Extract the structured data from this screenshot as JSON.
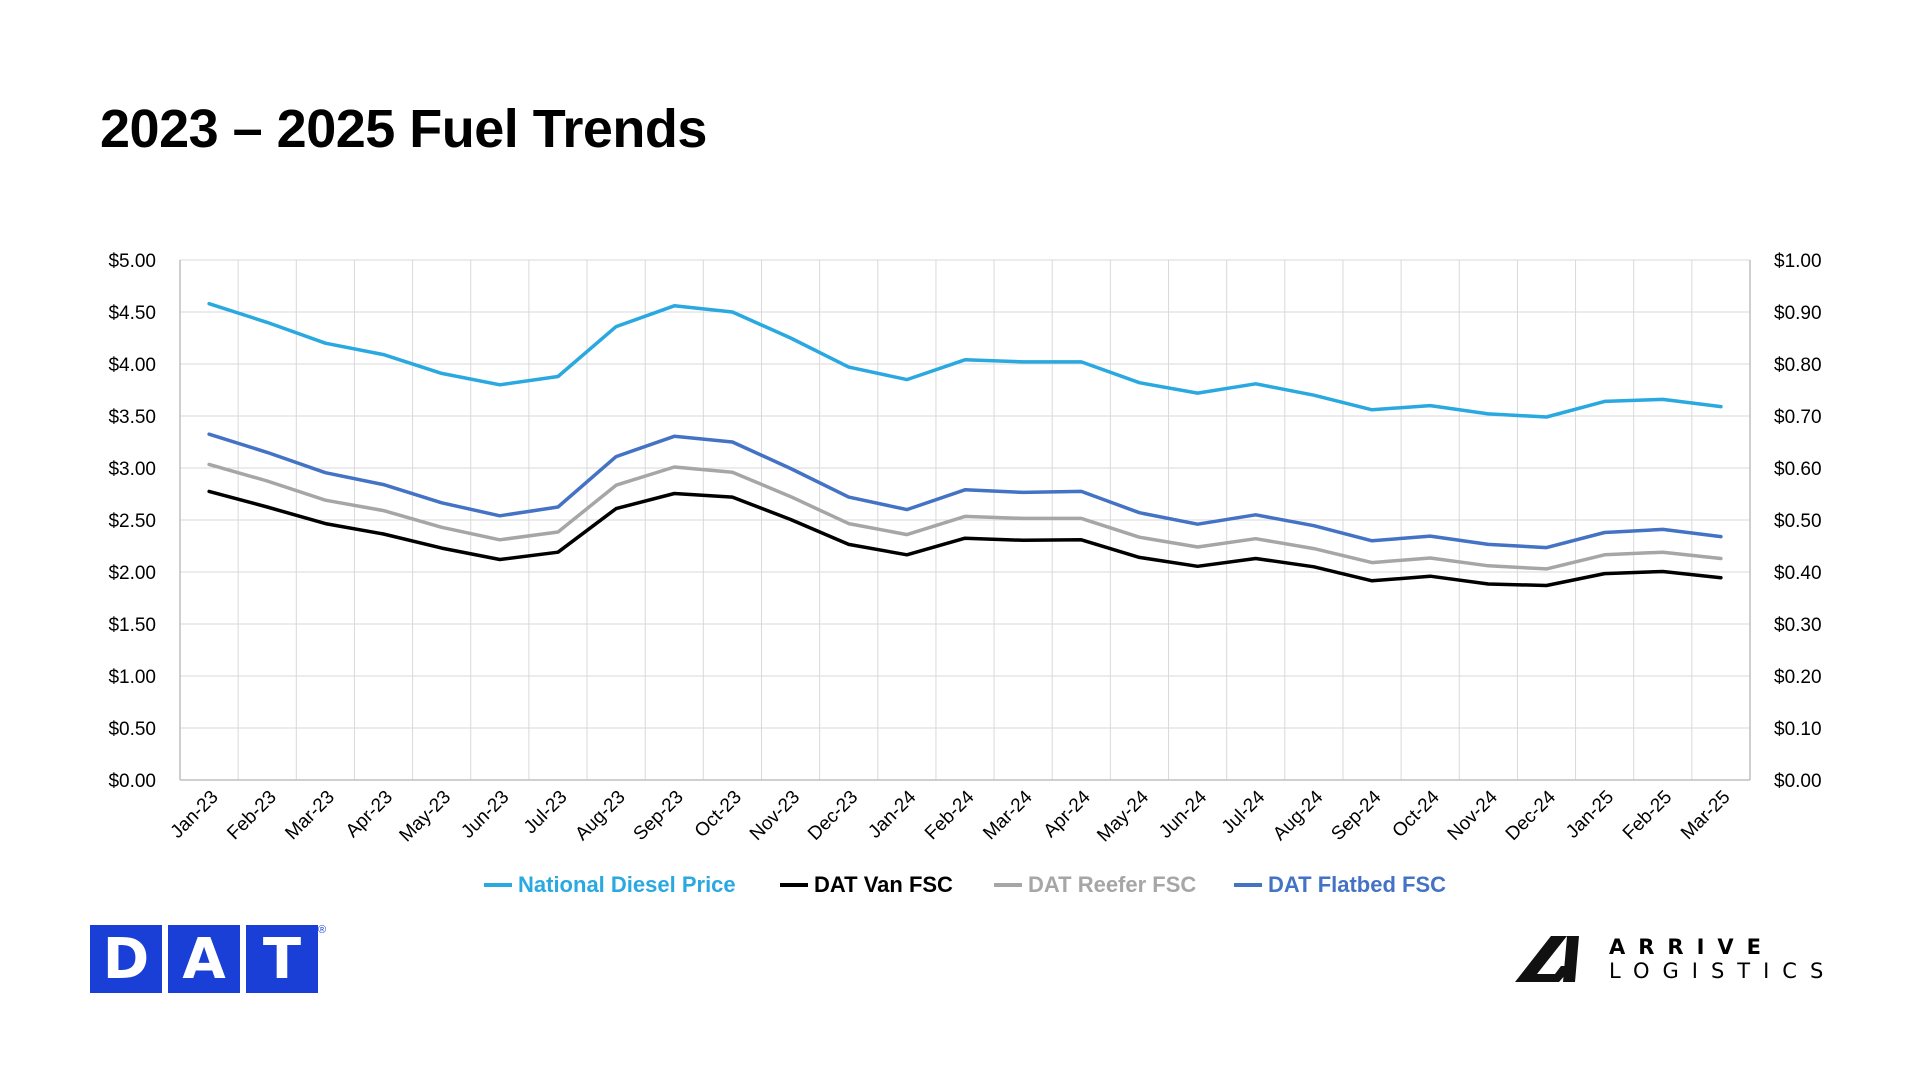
{
  "title": "2023 – 2025 Fuel Trends",
  "colors": {
    "diesel": "#2aa8e0",
    "van": "#000000",
    "reefer": "#a6a6a6",
    "flatbed": "#4472c4",
    "grid": "#d9d9d9",
    "dat_blue": "#1a3fd6"
  },
  "logos": {
    "dat": [
      "D",
      "A",
      "T"
    ],
    "dat_reg": "®",
    "arrive_line1": "ARRIVE",
    "arrive_line2": "LOGISTICS"
  },
  "chart_data": {
    "type": "line",
    "title": "2023 – 2025 Fuel Trends",
    "categories": [
      "Jan-23",
      "Feb-23",
      "Mar-23",
      "Apr-23",
      "May-23",
      "Jun-23",
      "Jul-23",
      "Aug-23",
      "Sep-23",
      "Oct-23",
      "Nov-23",
      "Dec-23",
      "Jan-24",
      "Feb-24",
      "Mar-24",
      "Apr-24",
      "May-24",
      "Jun-24",
      "Jul-24",
      "Aug-24",
      "Sep-24",
      "Oct-24",
      "Nov-24",
      "Dec-24",
      "Jan-25",
      "Feb-25",
      "Mar-25"
    ],
    "y_left": {
      "lim": [
        0,
        5
      ],
      "ticks": [
        "$0.00",
        "$0.50",
        "$1.00",
        "$1.50",
        "$2.00",
        "$2.50",
        "$3.00",
        "$3.50",
        "$4.00",
        "$4.50",
        "$5.00"
      ]
    },
    "y_right": {
      "lim": [
        0,
        1
      ],
      "ticks": [
        "$0.00",
        "$0.10",
        "$0.20",
        "$0.30",
        "$0.40",
        "$0.50",
        "$0.60",
        "$0.70",
        "$0.80",
        "$0.90",
        "$1.00"
      ]
    },
    "grid": true,
    "legend": "bottom",
    "series": [
      {
        "name": "National Diesel Price",
        "axis": "left",
        "color": "#2aa8e0",
        "values": [
          4.58,
          4.4,
          4.2,
          4.09,
          3.91,
          3.8,
          3.88,
          4.36,
          4.56,
          4.5,
          4.25,
          3.97,
          3.85,
          4.04,
          4.02,
          4.02,
          3.82,
          3.72,
          3.81,
          3.7,
          3.56,
          3.6,
          3.52,
          3.49,
          3.64,
          3.66,
          3.59
        ]
      },
      {
        "name": "DAT Van FSC",
        "axis": "right",
        "color": "#000000",
        "values": [
          0.555,
          0.525,
          0.493,
          0.473,
          0.446,
          0.424,
          0.438,
          0.522,
          0.551,
          0.544,
          0.501,
          0.453,
          0.433,
          0.465,
          0.461,
          0.462,
          0.428,
          0.411,
          0.426,
          0.41,
          0.383,
          0.392,
          0.377,
          0.374,
          0.397,
          0.401,
          0.389
        ]
      },
      {
        "name": "DAT Reefer FSC",
        "axis": "right",
        "color": "#a6a6a6",
        "values": [
          0.607,
          0.575,
          0.538,
          0.518,
          0.486,
          0.462,
          0.477,
          0.567,
          0.602,
          0.592,
          0.545,
          0.493,
          0.472,
          0.507,
          0.503,
          0.503,
          0.467,
          0.448,
          0.464,
          0.445,
          0.418,
          0.427,
          0.412,
          0.406,
          0.433,
          0.438,
          0.426
        ]
      },
      {
        "name": "DAT Flatbed FSC",
        "axis": "right",
        "color": "#4472c4",
        "values": [
          0.665,
          0.63,
          0.591,
          0.568,
          0.533,
          0.508,
          0.525,
          0.622,
          0.661,
          0.65,
          0.599,
          0.544,
          0.52,
          0.558,
          0.553,
          0.555,
          0.514,
          0.492,
          0.51,
          0.489,
          0.46,
          0.469,
          0.453,
          0.447,
          0.476,
          0.482,
          0.468
        ]
      }
    ]
  }
}
